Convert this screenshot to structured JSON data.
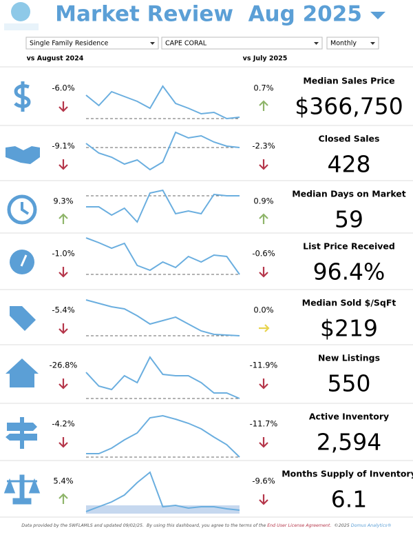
{
  "header": {
    "title": "Market Review  Aug 2025"
  },
  "filters": [
    "Single Family Residence",
    "CAPE CORAL",
    "Monthly"
  ],
  "columns": {
    "year": "vs August 2024",
    "month": "vs July 2025"
  },
  "rows": [
    {
      "label": "Median Sales Price",
      "value": "$366,750",
      "yoy": "-6.0%",
      "mom": "0.7%",
      "trend": [
        37,
        22,
        42,
        35,
        28,
        18,
        50,
        25,
        18,
        10,
        12,
        3,
        5
      ],
      "reference": 3
    },
    {
      "label": "Closed Sales",
      "value": "428",
      "yoy": "-9.1%",
      "mom": "-2.3%",
      "trend": [
        50,
        36,
        30,
        20,
        26,
        12,
        23,
        66,
        58,
        61,
        52,
        46,
        44
      ],
      "reference": 44
    },
    {
      "label": "Median Days on Market",
      "value": "59",
      "yoy": "9.3%",
      "mom": "0.9%",
      "trend": [
        35,
        35,
        23,
        33,
        13,
        55,
        59,
        25,
        29,
        25,
        53,
        51,
        51
      ],
      "reference": 51
    },
    {
      "label": "List Price Received",
      "value": "96.4%",
      "yoy": "-1.0%",
      "mom": "-0.6%",
      "trend": [
        70,
        63,
        55,
        62,
        30,
        23,
        35,
        27,
        43,
        35,
        45,
        43,
        17
      ],
      "reference": 17
    },
    {
      "label": "Median Sold $/SqFt",
      "value": "$219",
      "yoy": "-5.4%",
      "mom": "0.0%",
      "trend": [
        60,
        55,
        50,
        47,
        37,
        25,
        30,
        35,
        25,
        15,
        10,
        9,
        8
      ],
      "reference": 8
    },
    {
      "label": "New Listings",
      "value": "550",
      "yoy": "-26.8%",
      "mom": "-11.9%",
      "trend": [
        43,
        23,
        18,
        38,
        28,
        65,
        40,
        38,
        38,
        28,
        13,
        13,
        5
      ],
      "reference": 5
    },
    {
      "label": "Active Inventory",
      "value": "2,594",
      "yoy": "-4.2%",
      "mom": "-11.7%",
      "trend": [
        10,
        10,
        18,
        30,
        40,
        62,
        65,
        60,
        54,
        46,
        34,
        23,
        5
      ],
      "reference": 5
    },
    {
      "label": "Months Supply of Inventory",
      "value": "6.1",
      "yoy": "5.4%",
      "mom": "-9.6%",
      "trend": [
        3,
        10,
        17,
        27,
        45,
        60,
        10,
        12,
        8,
        10,
        10,
        7,
        5
      ]
    }
  ],
  "footer": {
    "text": "Data provided by the SWFLAMLS and updated 09/02/25.  By using this dashboard, you agree to the terms of the",
    "link": "End User License Agreement.",
    "copyright": "©2025",
    "brand": "Domus Analytics®"
  }
}
